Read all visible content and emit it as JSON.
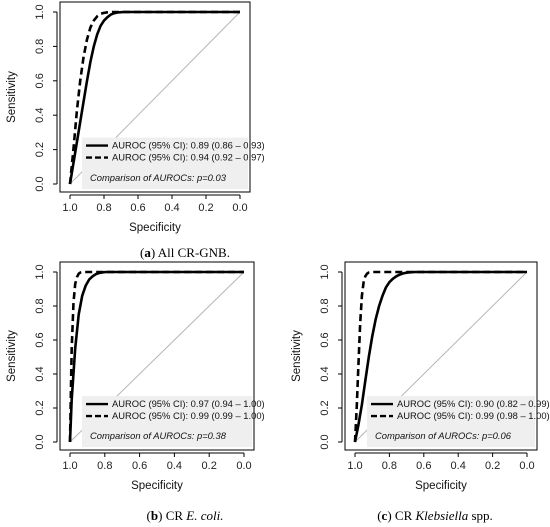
{
  "chart_data": [
    {
      "type": "line",
      "panel_letter": "a",
      "caption_text": "All CR-GNB.",
      "caption_italic": "",
      "caption_suffix": "",
      "xlabel": "Specificity",
      "ylabel": "Sensitivity",
      "xlim": [
        1.0,
        0.0
      ],
      "ylim": [
        0,
        1
      ],
      "x_ticks": [
        "1.0",
        "0.8",
        "0.6",
        "0.4",
        "0.2",
        "0.0"
      ],
      "y_ticks": [
        "0.0",
        "0.2",
        "0.4",
        "0.6",
        "0.8",
        "1.0"
      ],
      "reference_line": true,
      "legend_position": "bottom-right",
      "series": [
        {
          "name": "AUROC (95% CI): 0.89 (0.86 – 0.93)",
          "style": "solid",
          "color": "#000000",
          "x": [
            1.0,
            0.98,
            0.95,
            0.92,
            0.9,
            0.88,
            0.86,
            0.84,
            0.82,
            0.8,
            0.78,
            0.76,
            0.74,
            0.72,
            0.7,
            0.68,
            0.65,
            0.0
          ],
          "y": [
            0.0,
            0.12,
            0.3,
            0.48,
            0.6,
            0.71,
            0.8,
            0.87,
            0.92,
            0.95,
            0.97,
            0.985,
            0.993,
            0.997,
            0.999,
            1.0,
            1.0,
            1.0
          ]
        },
        {
          "name": "AUROC (95% CI): 0.94 (0.92 – 0.97)",
          "style": "dashed",
          "color": "#000000",
          "x": [
            1.0,
            0.98,
            0.96,
            0.94,
            0.92,
            0.9,
            0.88,
            0.86,
            0.84,
            0.82,
            0.8,
            0.78,
            0.76,
            0.74,
            0.72,
            0.0
          ],
          "y": [
            0.0,
            0.2,
            0.42,
            0.6,
            0.74,
            0.84,
            0.91,
            0.95,
            0.975,
            0.99,
            0.995,
            0.998,
            1.0,
            1.0,
            1.0,
            1.0
          ]
        }
      ],
      "annotation": "Comparison of AUROCs: p=0.03"
    },
    {
      "type": "line",
      "panel_letter": "b",
      "caption_text": "CR ",
      "caption_italic": "E. coli.",
      "caption_suffix": "",
      "xlabel": "Specificity",
      "ylabel": "Sensitivity",
      "xlim": [
        1.0,
        0.0
      ],
      "ylim": [
        0,
        1
      ],
      "x_ticks": [
        "1.0",
        "0.8",
        "0.6",
        "0.4",
        "0.2",
        "0.0"
      ],
      "y_ticks": [
        "0.0",
        "0.2",
        "0.4",
        "0.6",
        "0.8",
        "1.0"
      ],
      "reference_line": true,
      "legend_position": "bottom-right",
      "series": [
        {
          "name": "AUROC (95% CI): 0.97 (0.94 – 1.00)",
          "style": "solid",
          "color": "#000000",
          "x": [
            1.0,
            0.99,
            0.97,
            0.95,
            0.93,
            0.91,
            0.89,
            0.87,
            0.85,
            0.83,
            0.81,
            0.79,
            0.77,
            0.75,
            0.0
          ],
          "y": [
            0.0,
            0.25,
            0.55,
            0.75,
            0.86,
            0.92,
            0.955,
            0.975,
            0.988,
            0.995,
            0.998,
            1.0,
            1.0,
            1.0,
            1.0
          ]
        },
        {
          "name": "AUROC (95% CI): 0.99 (0.99 – 1.00)",
          "style": "dashed",
          "color": "#000000",
          "x": [
            1.0,
            0.995,
            0.99,
            0.98,
            0.97,
            0.96,
            0.95,
            0.94,
            0.93,
            0.92,
            0.0
          ],
          "y": [
            0.0,
            0.3,
            0.55,
            0.82,
            0.93,
            0.97,
            0.99,
            0.997,
            1.0,
            1.0,
            1.0
          ]
        }
      ],
      "annotation": "Comparison of AUROCs: p=0.38"
    },
    {
      "type": "line",
      "panel_letter": "c",
      "caption_text": "CR ",
      "caption_italic": "Klebsiella",
      "caption_suffix": " spp.",
      "xlabel": "Specificity",
      "ylabel": "Sensitivity",
      "xlim": [
        1.0,
        0.0
      ],
      "ylim": [
        0,
        1
      ],
      "x_ticks": [
        "1.0",
        "0.8",
        "0.6",
        "0.4",
        "0.2",
        "0.0"
      ],
      "y_ticks": [
        "0.0",
        "0.2",
        "0.4",
        "0.6",
        "0.8",
        "1.0"
      ],
      "reference_line": true,
      "legend_position": "bottom-right",
      "series": [
        {
          "name": "AUROC (95% CI): 0.90 (0.82 – 0.99)",
          "style": "solid",
          "color": "#000000",
          "x": [
            1.0,
            0.98,
            0.96,
            0.94,
            0.92,
            0.9,
            0.88,
            0.86,
            0.84,
            0.82,
            0.8,
            0.78,
            0.76,
            0.74,
            0.72,
            0.7,
            0.68,
            0.65,
            0.62,
            0.0
          ],
          "y": [
            0.0,
            0.1,
            0.22,
            0.36,
            0.5,
            0.62,
            0.72,
            0.8,
            0.86,
            0.91,
            0.94,
            0.96,
            0.975,
            0.985,
            0.992,
            0.996,
            0.998,
            1.0,
            1.0,
            1.0
          ]
        },
        {
          "name": "AUROC (95% CI): 0.99 (0.98 – 1.00)",
          "style": "dashed",
          "color": "#000000",
          "x": [
            1.0,
            0.99,
            0.98,
            0.97,
            0.96,
            0.95,
            0.94,
            0.93,
            0.92,
            0.9,
            0.88,
            0.0
          ],
          "y": [
            0.0,
            0.2,
            0.45,
            0.7,
            0.86,
            0.94,
            0.975,
            0.99,
            0.997,
            1.0,
            1.0,
            1.0
          ]
        }
      ],
      "annotation": "Comparison of AUROCs: p=0.06"
    }
  ]
}
